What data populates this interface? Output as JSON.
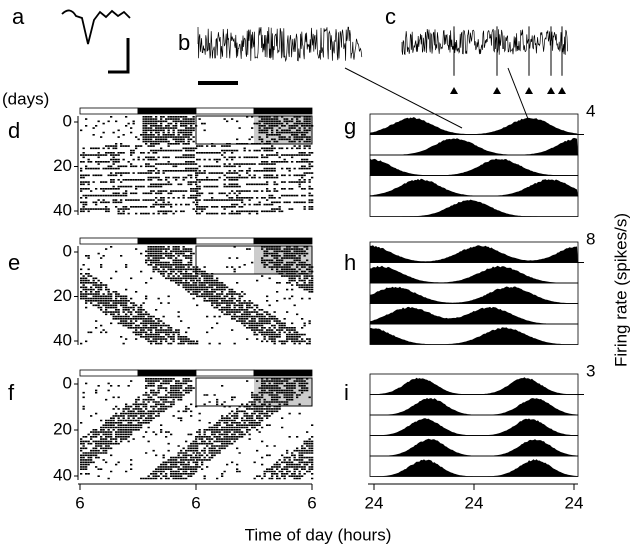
{
  "panels": {
    "a": "a",
    "b": "b",
    "c": "c",
    "d": "d",
    "e": "e",
    "f": "f",
    "g": "g",
    "h": "h",
    "i": "i"
  },
  "actogram_axis": {
    "unit": "(days)",
    "ticks": [
      "0",
      "20",
      "40"
    ]
  },
  "x_axis": {
    "title": "Time of day (hours)",
    "left_ticks": [
      "6",
      "6",
      "6"
    ],
    "right_ticks": [
      "24",
      "24",
      "24"
    ]
  },
  "firing_rate": {
    "title": "Firing rate (spikes/s)",
    "scale_maxima": [
      "4",
      "8",
      "3"
    ]
  }
}
